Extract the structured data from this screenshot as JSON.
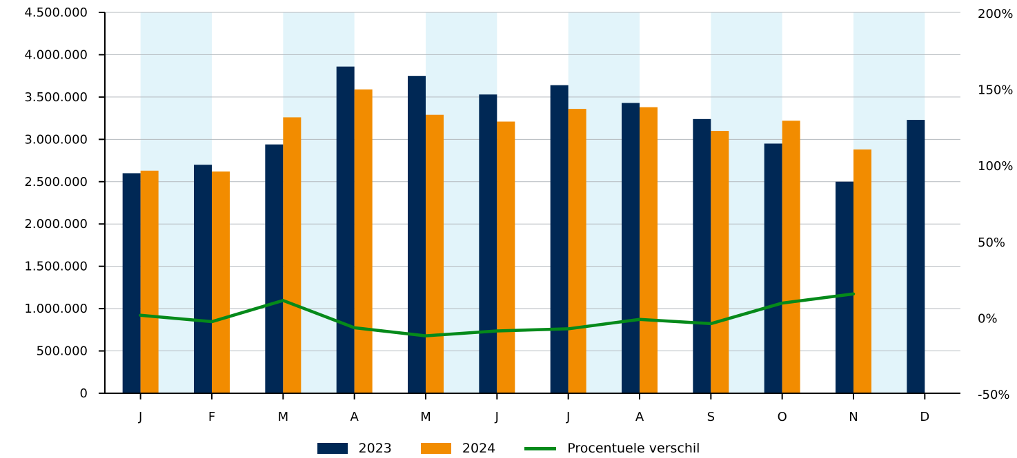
{
  "chart_data": {
    "type": "bar",
    "categories": [
      "J",
      "F",
      "M",
      "A",
      "M",
      "J",
      "J",
      "A",
      "S",
      "O",
      "N",
      "D"
    ],
    "series": [
      {
        "name": "2023",
        "type": "bar",
        "axis": "left",
        "color": "#002855",
        "values": [
          2600000,
          2700000,
          2940000,
          3860000,
          3750000,
          3530000,
          3640000,
          3430000,
          3240000,
          2950000,
          2500000,
          3230000
        ]
      },
      {
        "name": "2024",
        "type": "bar",
        "axis": "left",
        "color": "#f28c00",
        "values": [
          2630000,
          2620000,
          3260000,
          3590000,
          3290000,
          3210000,
          3360000,
          3380000,
          3100000,
          3220000,
          2880000,
          null
        ]
      },
      {
        "name": "Procentuele verschil",
        "type": "line",
        "axis": "right",
        "color": "#058a1a",
        "values": [
          1.2,
          -3.0,
          10.9,
          -7.0,
          -12.3,
          -9.1,
          -7.7,
          -1.5,
          -4.3,
          9.2,
          15.2,
          null
        ]
      }
    ],
    "y_left": {
      "min": 0,
      "max": 4500000,
      "ticks": [
        0,
        500000,
        1000000,
        1500000,
        2000000,
        2500000,
        3000000,
        3500000,
        4000000,
        4500000
      ],
      "tick_labels": [
        "0",
        "500.000",
        "1.000.000",
        "1.500.000",
        "2.000.000",
        "2.500.000",
        "3.000.000",
        "3.500.000",
        "4.000.000",
        "4.500.000"
      ]
    },
    "y_right": {
      "min": -50,
      "max": 200,
      "ticks": [
        -50,
        0,
        50,
        100,
        150,
        200
      ],
      "tick_labels": [
        "-50%",
        "0%",
        "50%",
        "100%",
        "150%",
        "200%"
      ]
    },
    "grid": true,
    "alternate_band_color": "#e2f4fa",
    "legend_position": "bottom-center"
  },
  "legend": [
    {
      "label": "2023",
      "color": "#002855",
      "kind": "bar"
    },
    {
      "label": "2024",
      "color": "#f28c00",
      "kind": "bar"
    },
    {
      "label": "Procentuele verschil",
      "color": "#058a1a",
      "kind": "line"
    }
  ]
}
